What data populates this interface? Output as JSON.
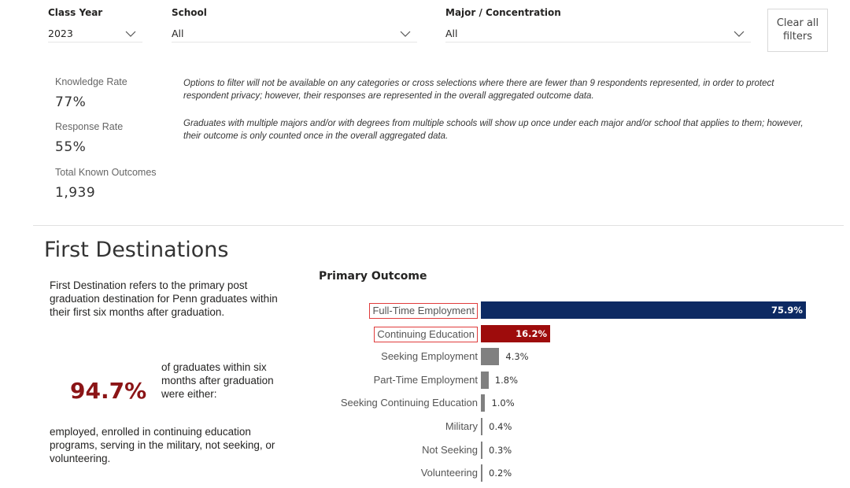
{
  "filters": {
    "class_year": {
      "label": "Class Year",
      "value": "2023"
    },
    "school": {
      "label": "School",
      "value": "All"
    },
    "major": {
      "label": "Major / Concentration",
      "value": "All"
    },
    "clear_label_line1": "Clear all",
    "clear_label_line2": "filters"
  },
  "kpis": [
    {
      "label": "Knowledge Rate",
      "value": "77%"
    },
    {
      "label": "Response Rate",
      "value": "55%"
    },
    {
      "label": "Total Known Outcomes",
      "value": "1,939"
    }
  ],
  "notes": [
    "Options to filter will not be available on any categories or cross selections where there are fewer than 9 respondents represented, in order to protect respondent privacy; however, their responses are represented in the overall aggregated outcome data.",
    "Graduates with multiple majors and/or with degrees from multiple schools will show up once under each major and/or school that applies to them; however, their outcome is only counted once in the overall aggregated data."
  ],
  "first_destinations": {
    "title": "First Destinations",
    "definition": "First Destination refers to the primary post graduation destination for Penn graduates within their first six months after graduation.",
    "pct": "94.7%",
    "pct_caption": "of graduates within six months after graduation were either:",
    "outcomes_text": "employed, enrolled in continuing education programs, serving in the military, not seeking, or volunteering."
  },
  "colors": {
    "navy": "#0d2a63",
    "red": "#9e0c0c",
    "grey": "#808080",
    "accent": "#8b1416"
  },
  "chart_data": {
    "type": "bar",
    "orientation": "horizontal",
    "title": "Primary Outcome",
    "categories": [
      "Full-Time Employment",
      "Continuing Education",
      "Seeking Employment",
      "Part-Time Employment",
      "Seeking Continuing Education",
      "Military",
      "Not Seeking",
      "Volunteering"
    ],
    "values": [
      75.9,
      16.2,
      4.3,
      1.8,
      1.0,
      0.4,
      0.3,
      0.2
    ],
    "labels": [
      "75.9%",
      "16.2%",
      "4.3%",
      "1.8%",
      "1.0%",
      "0.4%",
      "0.3%",
      "0.2%"
    ],
    "bar_colors": [
      "#0d2a63",
      "#9e0c0c",
      "#808080",
      "#808080",
      "#808080",
      "#808080",
      "#808080",
      "#808080"
    ],
    "highlighted": [
      "Full-Time Employment",
      "Continuing Education"
    ],
    "xlim": [
      0,
      75.9
    ]
  }
}
